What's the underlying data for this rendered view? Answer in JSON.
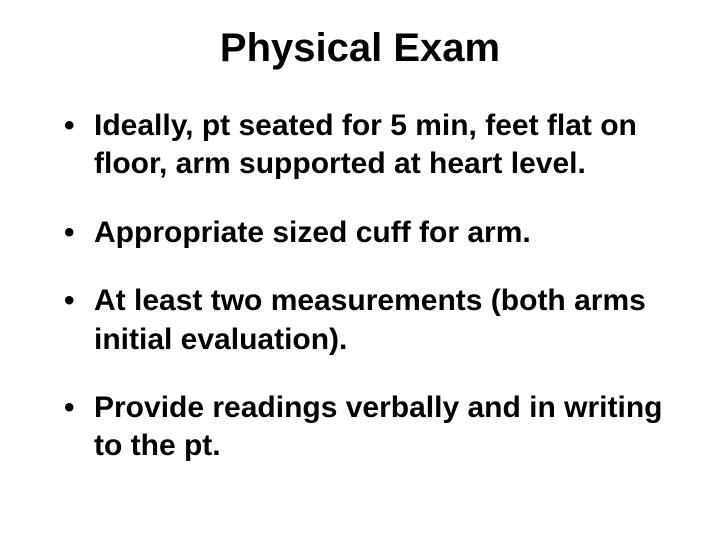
{
  "title": "Physical Exam",
  "bullets": [
    "Ideally, pt seated for 5 min, feet flat on floor, arm supported at heart level.",
    "Appropriate sized cuff for arm.",
    "At least two measurements (both arms initial evaluation).",
    "Provide readings verbally and in writing to the pt."
  ],
  "colors": {
    "background": "#ffffff",
    "text": "#000000"
  },
  "typography": {
    "title_fontsize": 40,
    "bullet_fontsize": 30,
    "font_family": "Arial",
    "font_weight": "bold"
  }
}
